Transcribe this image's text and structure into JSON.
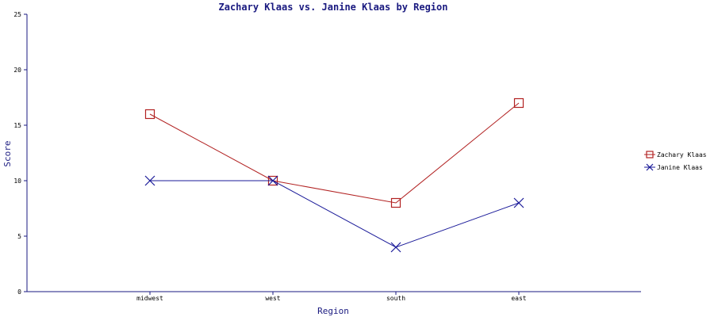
{
  "chart_data": {
    "type": "line",
    "title": "Zachary Klaas vs. Janine Klaas by Region",
    "xlabel": "Region",
    "ylabel": "Score",
    "categories": [
      "midwest",
      "west",
      "south",
      "east"
    ],
    "ylim": [
      0,
      25
    ],
    "yticks": [
      0,
      5,
      10,
      15,
      20,
      25
    ],
    "grid": false,
    "legend_position": "right",
    "series": [
      {
        "name": "Zachary Klaas",
        "values": [
          16,
          10,
          8,
          17
        ],
        "color": "#b22222",
        "marker": "square"
      },
      {
        "name": "Janine Klaas",
        "values": [
          10,
          10,
          4,
          8
        ],
        "color": "#1a1a99",
        "marker": "x"
      }
    ],
    "axis_color": "#1a1a80"
  }
}
